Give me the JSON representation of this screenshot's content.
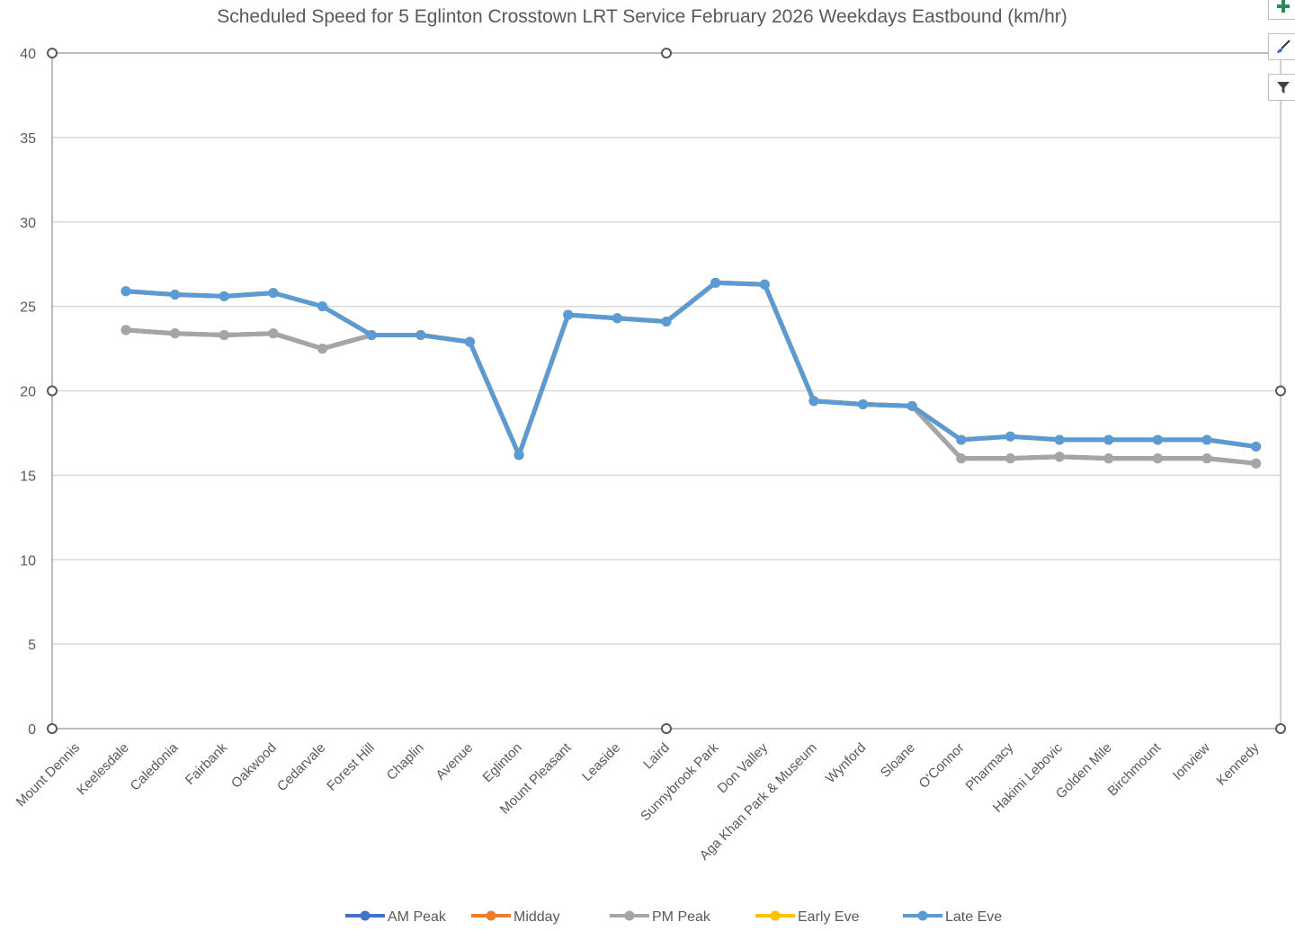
{
  "chart_data": {
    "type": "line",
    "title": "Scheduled Speed for 5 Eglinton Crosstown LRT Service February 2026 Weekdays Eastbound (km/hr)",
    "xlabel": "",
    "ylabel": "",
    "ylim": [
      0,
      40
    ],
    "yticks": [
      0,
      5,
      10,
      15,
      20,
      25,
      30,
      35,
      40
    ],
    "grid": true,
    "legend_position": "bottom",
    "categories": [
      "Mount Dennis",
      "Keelesdale",
      "Caledonia",
      "Fairbank",
      "Oakwood",
      "Cedarvale",
      "Forest Hill",
      "Chaplin",
      "Avenue",
      "Eglinton",
      "Mount Pleasant",
      "Leaside",
      "Laird",
      "Sunnybrook Park",
      "Don Valley",
      "Aga Khan Park & Museum",
      "Wynford",
      "Sloane",
      "O'Connor",
      "Pharmacy",
      "Hakimi Lebovic",
      "Golden Mile",
      "Birchmount",
      "Ionview",
      "Kennedy"
    ],
    "series": [
      {
        "name": "AM Peak",
        "color": "#4472C4",
        "values": [
          null,
          23.6,
          23.4,
          23.3,
          23.4,
          22.5,
          23.3,
          23.3,
          22.9,
          16.2,
          24.5,
          24.3,
          24.1,
          26.4,
          26.3,
          19.4,
          19.2,
          19.1,
          16.0,
          16.0,
          16.1,
          16.0,
          16.0,
          16.0,
          15.7
        ]
      },
      {
        "name": "Midday",
        "color": "#ED7D31",
        "values": [
          null,
          25.9,
          25.7,
          25.6,
          25.8,
          25.0,
          23.3,
          23.3,
          22.9,
          16.2,
          24.5,
          24.3,
          24.1,
          26.4,
          26.3,
          19.4,
          19.2,
          19.1,
          17.1,
          17.3,
          17.1,
          17.1,
          17.1,
          17.1,
          16.7
        ]
      },
      {
        "name": "PM Peak",
        "color": "#A5A5A5",
        "values": [
          null,
          23.6,
          23.4,
          23.3,
          23.4,
          22.5,
          23.3,
          23.3,
          22.9,
          16.2,
          24.5,
          24.3,
          24.1,
          26.4,
          26.3,
          19.4,
          19.2,
          19.1,
          16.0,
          16.0,
          16.1,
          16.0,
          16.0,
          16.0,
          15.7
        ]
      },
      {
        "name": "Early Eve",
        "color": "#FFC000",
        "values": [
          null,
          25.9,
          25.7,
          25.6,
          25.8,
          25.0,
          23.3,
          23.3,
          22.9,
          16.2,
          24.5,
          24.3,
          24.1,
          26.4,
          26.3,
          19.4,
          19.2,
          19.1,
          17.1,
          17.3,
          17.1,
          17.1,
          17.1,
          17.1,
          16.7
        ]
      },
      {
        "name": "Late Eve",
        "color": "#5B9BD5",
        "values": [
          null,
          25.9,
          25.7,
          25.6,
          25.8,
          25.0,
          23.3,
          23.3,
          22.9,
          16.2,
          24.5,
          24.3,
          24.1,
          26.4,
          26.3,
          19.4,
          19.2,
          19.1,
          17.1,
          17.3,
          17.1,
          17.1,
          17.1,
          17.1,
          16.7
        ]
      }
    ]
  },
  "chart_tools": {
    "add_element_icon": "plus-icon",
    "styles_icon": "brush-icon",
    "filter_icon": "funnel-icon"
  }
}
